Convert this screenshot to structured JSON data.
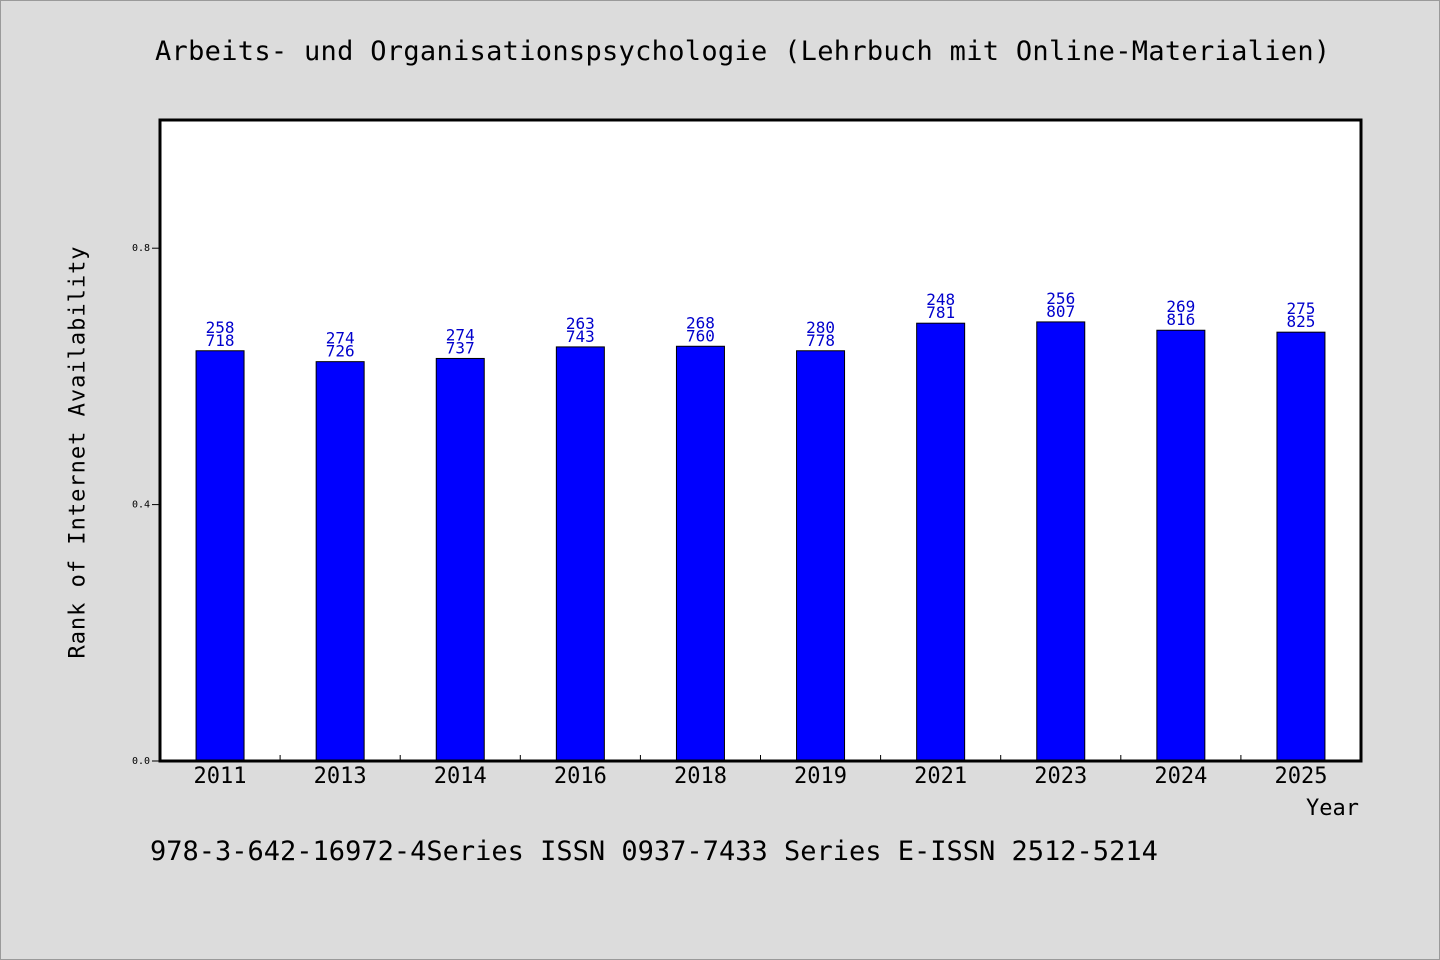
{
  "chart_data": {
    "type": "bar",
    "title": "Arbeits- und Organisationspsychologie (Lehrbuch mit Online-Materialien)",
    "xlabel": "Year",
    "ylabel": "Rank of Internet Availability",
    "categories": [
      "2011",
      "2013",
      "2014",
      "2016",
      "2018",
      "2019",
      "2021",
      "2023",
      "2024",
      "2025"
    ],
    "values": [
      0.64,
      0.623,
      0.628,
      0.646,
      0.647,
      0.64,
      0.683,
      0.685,
      0.672,
      0.669
    ],
    "label_top": [
      "258",
      "274",
      "274",
      "263",
      "268",
      "280",
      "248",
      "256",
      "269",
      "275"
    ],
    "label_bottom": [
      "718",
      "726",
      "737",
      "743",
      "760",
      "778",
      "781",
      "807",
      "816",
      "825"
    ],
    "yticks": [
      0.0,
      0.4,
      0.8
    ],
    "ytick_labels": [
      "0.0",
      "0.4",
      "0.8"
    ],
    "ylim": [
      0,
      1.0
    ],
    "bar_color": "#0000ff",
    "label_color": "#0000cc",
    "grid": false
  },
  "footer": "978-3-642-16972-4Series ISSN 0937-7433 Series E-ISSN 2512-5214"
}
